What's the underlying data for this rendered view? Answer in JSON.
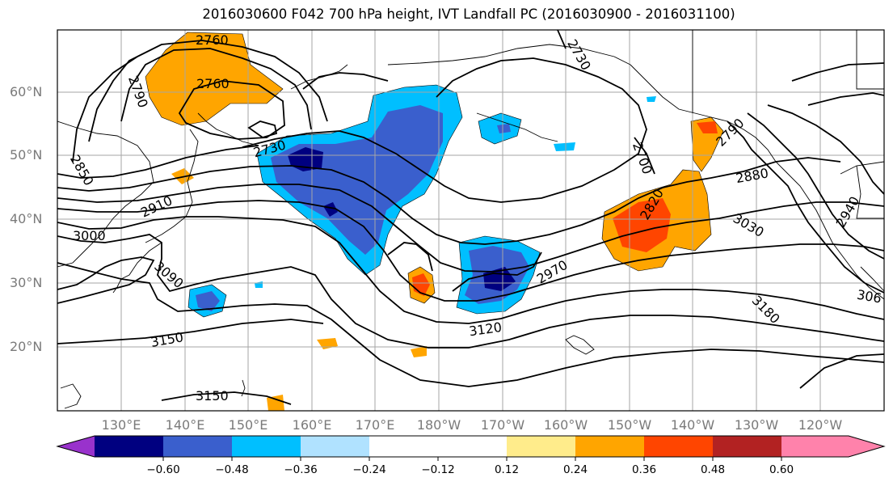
{
  "title": "2016030600 F042 700 hPa height, IVT Landfall PC (2016030900 - 2016031100)",
  "lat_labels": [
    "60°N",
    "50°N",
    "40°N",
    "30°N",
    "20°N"
  ],
  "lon_labels": [
    "130°E",
    "140°E",
    "150°E",
    "160°E",
    "170°E",
    "180°W",
    "170°W",
    "160°W",
    "150°W",
    "140°W",
    "130°W",
    "120°W"
  ],
  "contour_labels": {
    "c2760a": "2760",
    "c2760b": "2760",
    "c2790": "2790",
    "c2730a": "2730",
    "c2730b": "2730",
    "c2850": "2850",
    "c2910": "2910",
    "c3000": "3000",
    "c3090": "3090",
    "c3150a": "3150",
    "c3150b": "3150",
    "c3120": "3120",
    "c2970": "2970",
    "c2700": "2700",
    "c2820": "2820",
    "c2880": "2880",
    "c2790e": "2790",
    "c3030": "3030",
    "c2940": "2940",
    "c3180": "3180",
    "c3060": "306"
  },
  "colorbar": {
    "ticks": [
      "−0.60",
      "−0.48",
      "−0.36",
      "−0.24",
      "−0.12",
      "0.12",
      "0.24",
      "0.36",
      "0.48",
      "0.60"
    ],
    "colors": [
      "#9932cc",
      "#000080",
      "#3a5fcd",
      "#00bfff",
      "#b0e2ff",
      "#ffffff",
      "#ffec8b",
      "#ffa500",
      "#ff4500",
      "#b22222",
      "#ff82ab"
    ]
  }
}
